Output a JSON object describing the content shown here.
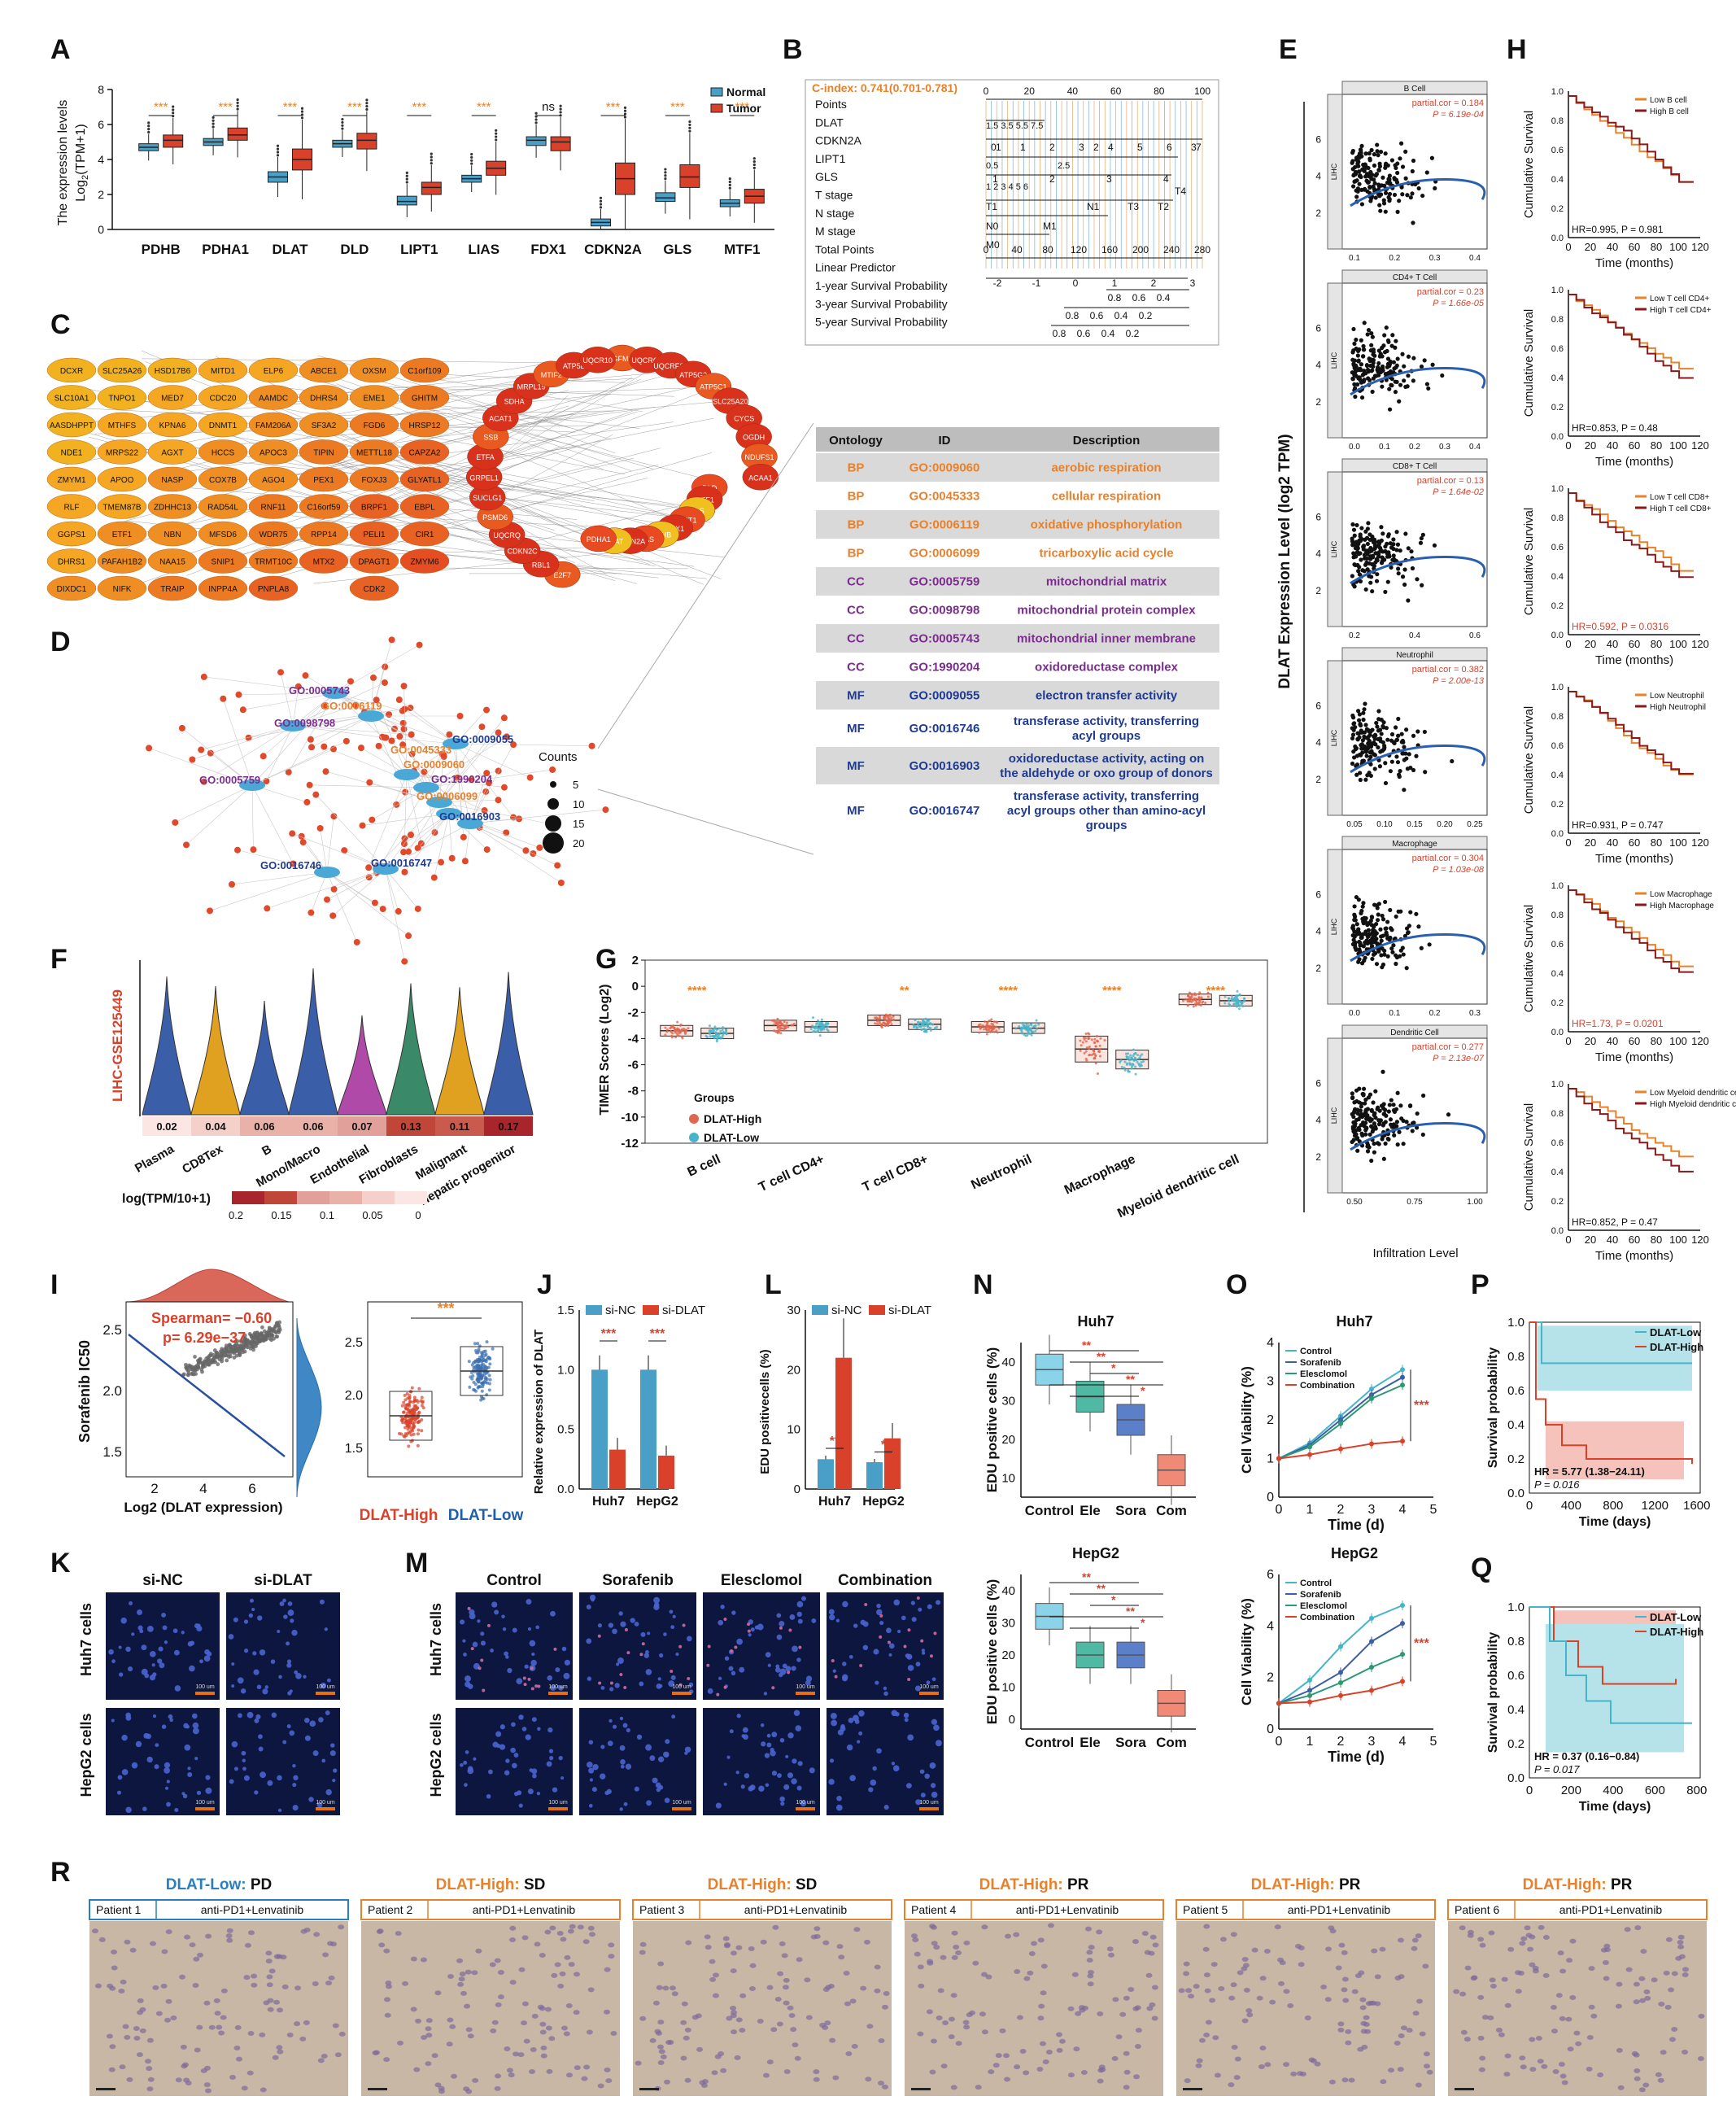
{
  "panel_labels": [
    "A",
    "B",
    "C",
    "D",
    "E",
    "F",
    "G",
    "H",
    "I",
    "J",
    "K",
    "L",
    "M",
    "N",
    "O",
    "P",
    "Q",
    "R"
  ],
  "colors": {
    "normal": "#4a9fc7",
    "tumor": "#d9412a",
    "orange": "#e8812b",
    "purple": "#7b2d8e",
    "navy": "#1f3a93",
    "gray": "#d8d8d8",
    "high": "#e06650",
    "low": "#47b5c9",
    "ihc": "#c9b7a6",
    "fluor": "#1a2a6a"
  },
  "panelA": {
    "ylabel": "The expression levels",
    "ylabel2": "Log",
    "ylabel2_sub": "2",
    "ylabel2_rest": "(TPM+1)",
    "ylim": [
      0,
      8
    ],
    "yticks": [
      "0",
      "2",
      "4",
      "6",
      "8"
    ],
    "legend": [
      "Normal",
      "Tumor"
    ],
    "genes": [
      "PDHB",
      "PDHA1",
      "DLAT",
      "DLD",
      "LIPT1",
      "LIAS",
      "FDX1",
      "CDKN2A",
      "GLS",
      "MTF1"
    ],
    "sig": [
      "***",
      "***",
      "***",
      "***",
      "***",
      "***",
      "ns",
      "***",
      "***",
      "***"
    ],
    "normal_box": [
      [
        4.5,
        4.7,
        4.9
      ],
      [
        4.8,
        5.0,
        5.2
      ],
      [
        2.7,
        3.0,
        3.3
      ],
      [
        4.7,
        4.9,
        5.1
      ],
      [
        1.4,
        1.6,
        1.9
      ],
      [
        2.7,
        2.9,
        3.1
      ],
      [
        4.8,
        5.1,
        5.3
      ],
      [
        0.2,
        0.4,
        0.6
      ],
      [
        1.6,
        1.8,
        2.1
      ],
      [
        1.3,
        1.5,
        1.7
      ]
    ],
    "tumor_box": [
      [
        4.7,
        5.1,
        5.4
      ],
      [
        5.1,
        5.4,
        5.8
      ],
      [
        3.4,
        4.0,
        4.6
      ],
      [
        4.6,
        5.1,
        5.5
      ],
      [
        2.0,
        2.4,
        2.7
      ],
      [
        3.1,
        3.5,
        3.9
      ],
      [
        4.5,
        5.0,
        5.3
      ],
      [
        2.0,
        2.9,
        3.8
      ],
      [
        2.4,
        3.0,
        3.7
      ],
      [
        1.5,
        1.9,
        2.3
      ]
    ]
  },
  "panelB": {
    "cindex": "C-index:  0.741(0.701-0.781)",
    "rows": [
      "Points",
      "DLAT",
      "CDKN2A",
      "LIPT1",
      "GLS",
      "T stage",
      "N stage",
      "M stage",
      "Total Points",
      "Linear Predictor",
      "1-year Survival Probability",
      "3-year Survival Probability",
      "5-year Survival Probability"
    ],
    "points_ticks": [
      "0",
      "20",
      "40",
      "60",
      "80",
      "100"
    ],
    "dlat_ticks": "1.5 3.5 5.5 7.5",
    "cdkn2a_ticks": [
      "0",
      "1",
      "2",
      "3",
      "4",
      "5",
      "6",
      "7"
    ],
    "lipt1_ticks": [
      "1",
      "2",
      "3"
    ],
    "lipt1_sub": [
      "0.5",
      "2.5"
    ],
    "gls_ticks": [
      "1",
      "2",
      "3",
      "4"
    ],
    "gls_sub": "1 2 3 4 5 6",
    "t_stage": [
      "T1",
      "T2",
      "T3",
      "T4"
    ],
    "n_stage": [
      "N0",
      "N1"
    ],
    "m_stage": [
      "M0",
      "M1"
    ],
    "total_ticks": [
      "0",
      "40",
      "80",
      "120",
      "160",
      "200",
      "240",
      "280"
    ],
    "lp_ticks": [
      "-2",
      "-1",
      "0",
      "1",
      "2",
      "3"
    ],
    "p1": [
      "0.8",
      "0.6",
      "0.4"
    ],
    "p3": [
      "0.8",
      "0.6",
      "0.4",
      "0.2"
    ],
    "p5": [
      "0.8",
      "0.6",
      "0.4",
      "0.2"
    ]
  },
  "panelC": {
    "cols": [
      [
        "DCXR",
        "SLC10A1",
        "AASDHPPT",
        "NDE1",
        "ZMYM1",
        "RLF",
        "GGPS1",
        "DHRS1",
        "DIXDC1"
      ],
      [
        "SLC25A26",
        "TNPO1",
        "MTHFS",
        "MRPS22",
        "APOO",
        "TMEM87B",
        "ETF1",
        "PAFAH1B2",
        "NIFK"
      ],
      [
        "HSD17B6",
        "MED7",
        "KPNA6",
        "AGXT",
        "NASP",
        "ZDHHC13",
        "NBN",
        "NAA15",
        "TRAIP"
      ],
      [
        "MITD1",
        "CDC20",
        "DNMT1",
        "HCCS",
        "COX7B",
        "RAD54L",
        "MFSD6",
        "SNIP1",
        "INPP4A"
      ],
      [
        "ELP6",
        "AAMDC",
        "FAM206A",
        "APOC3",
        "AGO4",
        "RNF11",
        "WDR75",
        "TRMT10C",
        "PNPLA8"
      ],
      [
        "ABCE1",
        "DHRS4",
        "SF3A2",
        "TIPIN",
        "PEX1",
        "C16orf59",
        "RPP14",
        "MTX2"
      ],
      [
        "OXSM",
        "EME1",
        "FGD6",
        "METTL18",
        "FOXJ3",
        "BRPF1",
        "PELI1",
        "DPAGT1",
        "CDK2"
      ],
      [
        "C1orf109",
        "GHITM",
        "HRSP12",
        "CAPZA2",
        "GLYATL1",
        "EBPL",
        "CIR1",
        "ZMYM6"
      ]
    ],
    "ring": [
      "GFM1",
      "UQCRC1",
      "UQCRFS1",
      "ATP5G3",
      "ATP5C1",
      "SLC25A20",
      "CYCS",
      "OGDH",
      "NDUFS1",
      "ACAA1",
      "DLD",
      "MTF1",
      "GLS",
      "LIPT1",
      "FDX1",
      "PDHB",
      "LIAS",
      "CDKN2A",
      "DLAT",
      "PDHA1",
      "E2F7",
      "RBL1",
      "CDKN2C",
      "UQCRQ",
      "PSMD6",
      "SUCLG1",
      "GRPEL1",
      "ETFA",
      "SSB",
      "ACAT1",
      "SDHA",
      "MRPL19",
      "MTIF2",
      "ATP5L",
      "UQCR10"
    ]
  },
  "panelD": {
    "labels": [
      {
        "t": "GO:0005743",
        "c": "purple"
      },
      {
        "t": "GO:0006119",
        "c": "orange"
      },
      {
        "t": "GO:0098798",
        "c": "purple"
      },
      {
        "t": "GO:0009055",
        "c": "navy"
      },
      {
        "t": "GO:0045333",
        "c": "orange"
      },
      {
        "t": "GO:0009060",
        "c": "orange"
      },
      {
        "t": "GO:1990204",
        "c": "purple"
      },
      {
        "t": "GO:0006099",
        "c": "orange"
      },
      {
        "t": "GO:0005759",
        "c": "purple"
      },
      {
        "t": "GO:0016903",
        "c": "navy"
      },
      {
        "t": "GO:0016746",
        "c": "navy"
      },
      {
        "t": "GO:0016747",
        "c": "navy"
      }
    ],
    "legend_title": "Counts",
    "legend": [
      "5",
      "10",
      "15",
      "20"
    ]
  },
  "go_table": {
    "headers": [
      "Ontology",
      "ID",
      "Description"
    ],
    "rows": [
      {
        "o": "BP",
        "id": "GO:0009060",
        "d": [
          "aerobic respiration"
        ],
        "c": "orange"
      },
      {
        "o": "BP",
        "id": "GO:0045333",
        "d": [
          "cellular respiration"
        ],
        "c": "orange"
      },
      {
        "o": "BP",
        "id": "GO:0006119",
        "d": [
          "oxidative phosphorylation"
        ],
        "c": "orange"
      },
      {
        "o": "BP",
        "id": "GO:0006099",
        "d": [
          "tricarboxylic acid cycle"
        ],
        "c": "orange"
      },
      {
        "o": "CC",
        "id": "GO:0005759",
        "d": [
          "mitochondrial matrix"
        ],
        "c": "purple"
      },
      {
        "o": "CC",
        "id": "GO:0098798",
        "d": [
          "mitochondrial protein complex"
        ],
        "c": "purple"
      },
      {
        "o": "CC",
        "id": "GO:0005743",
        "d": [
          "mitochondrial inner membrane"
        ],
        "c": "purple"
      },
      {
        "o": "CC",
        "id": "GO:1990204",
        "d": [
          "oxidoreductase complex"
        ],
        "c": "purple"
      },
      {
        "o": "MF",
        "id": "GO:0009055",
        "d": [
          "electron transfer activity"
        ],
        "c": "navy"
      },
      {
        "o": "MF",
        "id": "GO:0016746",
        "d": [
          "transferase activity, transferring",
          "acyl groups"
        ],
        "c": "navy"
      },
      {
        "o": "MF",
        "id": "GO:0016903",
        "d": [
          "oxidoreductase activity, acting on",
          "the aldehyde or oxo group of donors"
        ],
        "c": "navy"
      },
      {
        "o": "MF",
        "id": "GO:0016747",
        "d": [
          "transferase activity, transferring",
          "acyl groups other than amino-acyl",
          "groups"
        ],
        "c": "navy"
      }
    ]
  },
  "panelE": {
    "ylabel": "DLAT Expression Level (log2 TPM)",
    "xlabel": "Infiltration Level",
    "side": "LIHC",
    "panels": [
      {
        "title": "B Cell",
        "cor": "partial.cor = 0.184",
        "p": "P = 6.19e-04",
        "xt": [
          "0.1",
          "0.2",
          "0.3",
          "0.4"
        ],
        "yt": [
          "2",
          "4",
          "6"
        ]
      },
      {
        "title": "CD4+ T Cell",
        "cor": "partial.cor = 0.23",
        "p": "P = 1.66e-05",
        "xt": [
          "0.0",
          "0.1",
          "0.2",
          "0.3",
          "0.4"
        ],
        "yt": [
          "2",
          "4",
          "6"
        ]
      },
      {
        "title": "CD8+ T Cell",
        "cor": "partial.cor = 0.13",
        "p": "P = 1.64e-02",
        "xt": [
          "0.2",
          "0.4",
          "0.6"
        ],
        "yt": [
          "2",
          "4",
          "6"
        ]
      },
      {
        "title": "Neutrophil",
        "cor": "partial.cor = 0.382",
        "p": "P = 2.00e-13",
        "xt": [
          "0.05",
          "0.10",
          "0.15",
          "0.20",
          "0.25"
        ],
        "yt": [
          "2",
          "4",
          "6"
        ]
      },
      {
        "title": "Macrophage",
        "cor": "partial.cor = 0.304",
        "p": "P = 1.03e-08",
        "xt": [
          "0.0",
          "0.1",
          "0.2",
          "0.3"
        ],
        "yt": [
          "2",
          "4",
          "6"
        ]
      },
      {
        "title": "Dendritic Cell",
        "cor": "partial.cor = 0.277",
        "p": "P = 2.13e-07",
        "xt": [
          "0.50",
          "0.75",
          "1.00"
        ],
        "yt": [
          "2",
          "4",
          "6"
        ]
      }
    ]
  },
  "panelH": {
    "ylabel": "Cumulative Survival",
    "xlabel": "Time (months)",
    "xticks": [
      "0",
      "20",
      "40",
      "60",
      "80",
      "100",
      "120"
    ],
    "yticks": [
      "0.0",
      "0.2",
      "0.4",
      "0.6",
      "0.8",
      "1.0"
    ],
    "panels": [
      {
        "l1": "Low B cell",
        "l2": "High B cell",
        "hr": "HR=0.995, P = 0.981",
        "red": false
      },
      {
        "l1": "Low T cell CD4+",
        "l2": "High T cell CD4+",
        "hr": "HR=0.853, P = 0.48",
        "red": false
      },
      {
        "l1": "Low T cell CD8+",
        "l2": "High T cell CD8+",
        "hr": "HR=0.592, P = 0.0316",
        "red": true
      },
      {
        "l1": "Low Neutrophil",
        "l2": "High Neutrophil",
        "hr": "HR=0.931, P = 0.747",
        "red": false
      },
      {
        "l1": "Low Macrophage",
        "l2": "High Macrophage",
        "hr": "HR=1.73, P = 0.0201",
        "red": true
      },
      {
        "l1": "Low Myeloid dendritic cell",
        "l2": "High Myeloid dendritic cell",
        "hr": "HR=0.852, P = 0.47",
        "red": false
      }
    ]
  },
  "panelF": {
    "ylabel": "LIHC-GSE125449",
    "cells": [
      "Plasma",
      "CD8Tex",
      "B",
      "Mono/Macro",
      "Endothelial",
      "Fibroblasts",
      "Malignant",
      "Hepatic progenitor"
    ],
    "values": [
      "0.02",
      "0.04",
      "0.06",
      "0.06",
      "0.07",
      "0.13",
      "0.11",
      "0.17"
    ],
    "legend_title": "log(TPM/10+1)",
    "legend_ticks": [
      "0.2",
      "0.15",
      "0.1",
      "0.05",
      "0"
    ]
  },
  "panelG": {
    "ylabel": "TIMER Scores (Log2)",
    "yticks": [
      "2",
      "0",
      "-2",
      "-4",
      "-6",
      "-8",
      "-10",
      "-12"
    ],
    "cats": [
      "B cell",
      "T cell CD4+",
      "T cell CD8+",
      "Neutrophil",
      "Macrophage",
      "Myeloid dendritic cell"
    ],
    "sig": [
      "****",
      "",
      "**",
      "****",
      "****",
      "****"
    ],
    "groups_title": "Groups",
    "groups": [
      "DLAT-High",
      "DLAT-Low"
    ],
    "high_med": [
      -3.4,
      -3.0,
      -2.6,
      -3.1,
      -4.8,
      -1.0
    ],
    "low_med": [
      -3.6,
      -3.1,
      -2.9,
      -3.2,
      -5.6,
      -1.1
    ]
  },
  "panelI": {
    "spearman": "Spearman= −0.60",
    "p": "p= 6.29e−37",
    "ylabel": "Sorafenib IC50",
    "xlabel": "Log2 (DLAT expression)",
    "xticks": [
      "2",
      "4",
      "6"
    ],
    "yticks": [
      "1.5",
      "2.0",
      "2.5"
    ],
    "box_yticks": [
      "1.5",
      "2.0",
      "2.5"
    ],
    "groups": [
      "DLAT-High",
      "DLAT-Low"
    ],
    "sig": "***"
  },
  "panelJ": {
    "ylabel": "Relative expression of DLAT",
    "legend": [
      "si-NC",
      "si-DLAT"
    ],
    "yticks": [
      "0.0",
      "0.5",
      "1.0",
      "1.5"
    ],
    "cats": [
      "Huh7",
      "HepG2"
    ],
    "nc": [
      1.0,
      1.0
    ],
    "dlat": [
      0.33,
      0.28
    ],
    "sig": [
      "***",
      "***"
    ]
  },
  "panelL": {
    "ylabel": "EDU positivecells (%)",
    "legend": [
      "si-NC",
      "si-DLAT"
    ],
    "yticks": [
      "0",
      "10",
      "20",
      "30"
    ],
    "cats": [
      "Huh7",
      "HepG2"
    ],
    "nc": [
      5,
      4.5
    ],
    "dlat": [
      22,
      8.5
    ],
    "sig": [
      "**",
      "*"
    ]
  },
  "panelK": {
    "cols": [
      "si-NC",
      "si-DLAT"
    ],
    "rows": [
      "Huh7 cells",
      "HepG2 cells"
    ],
    "scale": "100 um"
  },
  "panelM": {
    "cols": [
      "Control",
      "Sorafenib",
      "Elesclomol",
      "Combination"
    ],
    "rows": [
      "Huh7 cells",
      "HepG2 cells"
    ],
    "scale": "100 um"
  },
  "panelN": {
    "ylabel": "EDU positive cells (%)",
    "cats": [
      "Control",
      "Ele",
      "Sora",
      "Com"
    ],
    "top": {
      "title": "Huh7",
      "yticks": [
        "10",
        "20",
        "30",
        "40"
      ],
      "med": [
        38,
        31,
        25,
        12
      ]
    },
    "bottom": {
      "title": "HepG2",
      "yticks": [
        "0",
        "10",
        "20",
        "30",
        "40"
      ],
      "med": [
        32,
        20,
        20,
        5
      ]
    }
  },
  "panelO": {
    "ylabel": "Cell Viability (%)",
    "xlabel": "Time (d)",
    "xticks": [
      "0",
      "1",
      "2",
      "3",
      "4",
      "5"
    ],
    "legend": [
      "Control",
      "Sorafenib",
      "Elesclomol",
      "Combination"
    ],
    "sig": "***",
    "top": {
      "title": "Huh7",
      "yticks": [
        "0",
        "1",
        "2",
        "3",
        "4"
      ],
      "series": [
        [
          1,
          1.4,
          2.1,
          2.8,
          3.3
        ],
        [
          1,
          1.35,
          2.0,
          2.65,
          3.1
        ],
        [
          1,
          1.3,
          1.9,
          2.55,
          2.9
        ],
        [
          1,
          1.1,
          1.25,
          1.38,
          1.45
        ]
      ]
    },
    "bottom": {
      "title": "HepG2",
      "yticks": [
        "0",
        "2",
        "4",
        "6"
      ],
      "series": [
        [
          1,
          1.9,
          3.2,
          4.3,
          4.8
        ],
        [
          1,
          1.5,
          2.2,
          3.4,
          4.1
        ],
        [
          1,
          1.3,
          1.8,
          2.4,
          2.9
        ],
        [
          1,
          1.05,
          1.3,
          1.5,
          1.85
        ]
      ]
    }
  },
  "panelP": {
    "legend": [
      "DLAT-Low",
      "DLAT-High"
    ],
    "ylabel": "Survival probability",
    "xlabel": "Time (days)",
    "xticks": [
      "0",
      "400",
      "800",
      "1200",
      "1600"
    ],
    "yticks": [
      "0.0",
      "0.2",
      "0.4",
      "0.6",
      "0.8",
      "1.0"
    ],
    "hr": "HR = 5.77 (1.38−24.11)",
    "p": "P = 0.016"
  },
  "panelQ": {
    "legend": [
      "DLAT-Low",
      "DLAT-High"
    ],
    "ylabel": "Survival probability",
    "xlabel": "Time (days)",
    "xticks": [
      "0",
      "200",
      "400",
      "600",
      "800"
    ],
    "yticks": [
      "0.0",
      "0.2",
      "0.4",
      "0.6",
      "0.8",
      "1.0"
    ],
    "hr": "HR = 0.37 (0.16−0.84)",
    "p": "P = 0.017"
  },
  "panelR": {
    "panels": [
      {
        "grp": "DLAT-Low:",
        "resp": "PD",
        "patient": "Patient 1",
        "treat": "anti-PD1+Lenvatinib",
        "low": true
      },
      {
        "grp": "DLAT-High:",
        "resp": "SD",
        "patient": "Patient 2",
        "treat": "anti-PD1+Lenvatinib",
        "low": false
      },
      {
        "grp": "DLAT-High:",
        "resp": "SD",
        "patient": "Patient 3",
        "treat": "anti-PD1+Lenvatinib",
        "low": false
      },
      {
        "grp": "DLAT-High:",
        "resp": "PR",
        "patient": "Patient 4",
        "treat": "anti-PD1+Lenvatinib",
        "low": false
      },
      {
        "grp": "DLAT-High:",
        "resp": "PR",
        "patient": "Patient 5",
        "treat": "anti-PD1+Lenvatinib",
        "low": false
      },
      {
        "grp": "DLAT-High:",
        "resp": "PR",
        "patient": "Patient 6",
        "treat": "anti-PD1+Lenvatinib",
        "low": false
      }
    ]
  }
}
